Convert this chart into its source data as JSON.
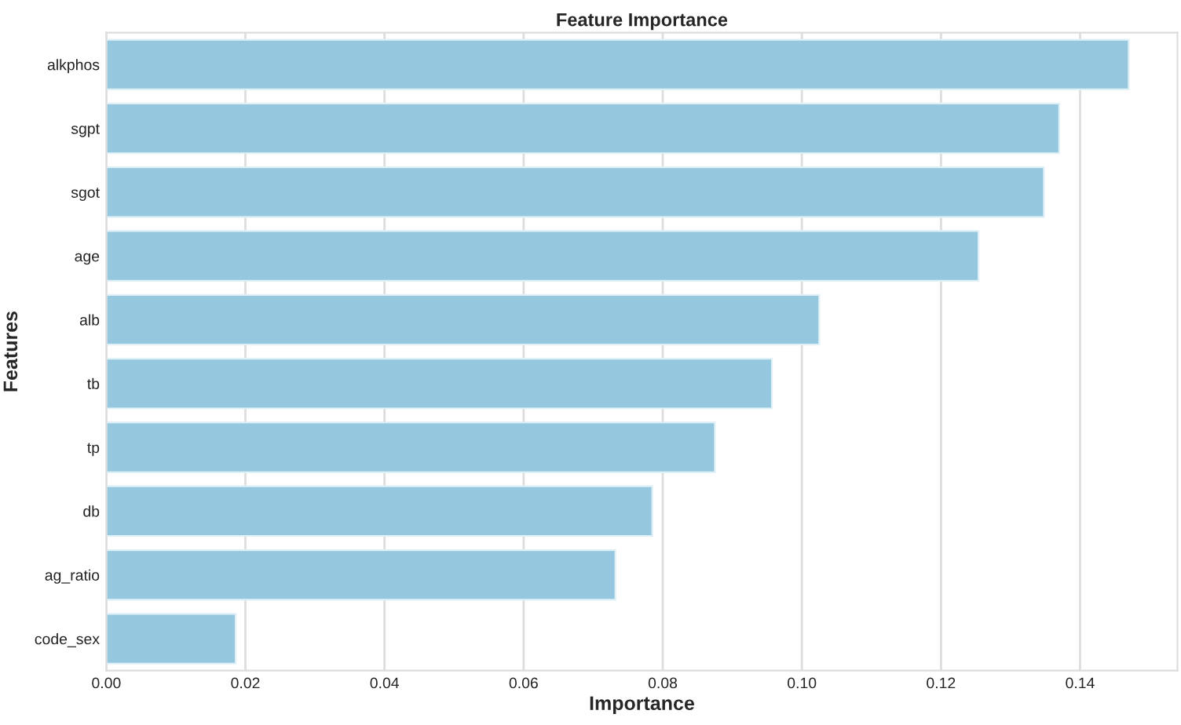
{
  "chart_data": {
    "type": "bar",
    "orientation": "horizontal",
    "title": "Feature Importance",
    "xlabel": "Importance",
    "ylabel": "Features",
    "categories": [
      "alkphos",
      "sgpt",
      "sgot",
      "age",
      "alb",
      "tb",
      "tp",
      "db",
      "ag_ratio",
      "code_sex"
    ],
    "values": [
      0.147,
      0.137,
      0.1348,
      0.1254,
      0.1025,
      0.0957,
      0.0875,
      0.0785,
      0.0732,
      0.0186
    ],
    "color": "#95c8de",
    "xlim": [
      0,
      0.154
    ],
    "xticks": [
      {
        "value": 0,
        "label": "0.00"
      },
      {
        "value": 0.02,
        "label": "0.02"
      },
      {
        "value": 0.04,
        "label": "0.04"
      },
      {
        "value": 0.06,
        "label": "0.06"
      },
      {
        "value": 0.08,
        "label": "0.08"
      },
      {
        "value": 0.1,
        "label": "0.10"
      },
      {
        "value": 0.12,
        "label": "0.12"
      },
      {
        "value": 0.14,
        "label": "0.14"
      }
    ],
    "grid": "x"
  }
}
